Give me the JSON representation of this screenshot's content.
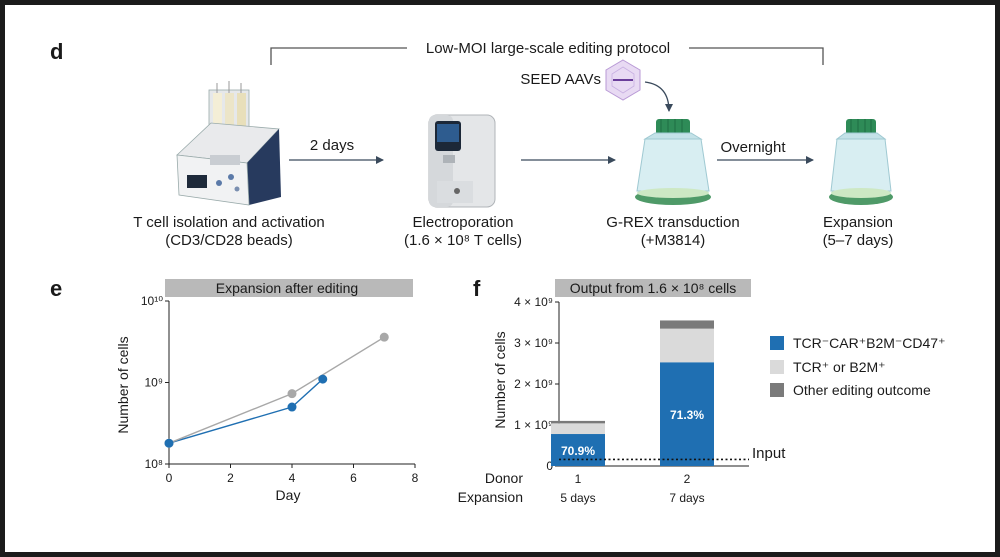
{
  "panel_d": {
    "letter": "d",
    "protocol_title": "Low-MOI large-scale editing protocol",
    "seed_label": "SEED AAVs",
    "arrow_1_label": "2 days",
    "arrow_3_label": "Overnight",
    "steps": [
      {
        "name": "T cell isolation and activation",
        "detail": "(CD3/CD28 beads)"
      },
      {
        "name": "Electroporation",
        "detail": "(1.6 × 10⁸ T cells)"
      },
      {
        "name": "G-REX transduction",
        "detail": "(+M3814)"
      },
      {
        "name": "Expansion",
        "detail": "(5–7 days)"
      }
    ]
  },
  "panel_e": {
    "letter": "e",
    "banner": "Expansion after editing"
  },
  "panel_f": {
    "letter": "f",
    "banner": "Output from 1.6 × 10⁸ cells",
    "input_label": "Input",
    "donor_row_label": "Donor",
    "expansion_row_label": "Expansion",
    "donors": [
      "1",
      "2"
    ],
    "expansions": [
      "5 days",
      "7 days"
    ],
    "legend": [
      {
        "label": "TCR⁻CAR⁺B2M⁻CD47⁺",
        "color": "#1f6fb2"
      },
      {
        "label": "TCR⁺ or B2M⁺",
        "color": "#dadada"
      },
      {
        "label": "Other editing outcome",
        "color": "#7a7a7a"
      }
    ]
  },
  "chart_data": [
    {
      "type": "line",
      "title": "Expansion after editing",
      "xlabel": "Day",
      "ylabel": "Number of cells",
      "x_ticks": [
        "0",
        "2",
        "4",
        "6",
        "8"
      ],
      "y_ticks": [
        "10⁸",
        "10⁹",
        "10¹⁰"
      ],
      "y_scale": "log",
      "xlim": [
        0,
        8
      ],
      "ylim": [
        100000000,
        10000000000
      ],
      "series": [
        {
          "color": "#1f6fb2",
          "points": [
            [
              0,
              180000000
            ],
            [
              4,
              500000000
            ],
            [
              5,
              1100000000
            ]
          ]
        },
        {
          "color": "#a8a8a8",
          "points": [
            [
              0,
              180000000
            ],
            [
              4,
              730000000
            ],
            [
              7,
              3600000000
            ]
          ]
        }
      ]
    },
    {
      "type": "bar",
      "stacked": true,
      "title": "Output from 1.6 × 10⁸ cells",
      "ylabel": "Number of cells",
      "y_ticks": [
        "0",
        "1 × 10⁹",
        "2 × 10⁹",
        "3 × 10⁹",
        "4 × 10⁹"
      ],
      "ylim": [
        0,
        4000000000
      ],
      "input_level": 160000000,
      "categories": [
        "1",
        "2"
      ],
      "series": [
        {
          "name": "TCR⁻CAR⁺B2M⁻CD47⁺",
          "color": "#1f6fb2",
          "values": [
            780000000,
            2530000000
          ],
          "labels": [
            "70.9%",
            "71.3%"
          ]
        },
        {
          "name": "TCR⁺ or B2M⁺",
          "color": "#dadada",
          "values": [
            260000000,
            820000000
          ]
        },
        {
          "name": "Other editing outcome",
          "color": "#7a7a7a",
          "values": [
            60000000,
            200000000
          ]
        }
      ]
    }
  ]
}
